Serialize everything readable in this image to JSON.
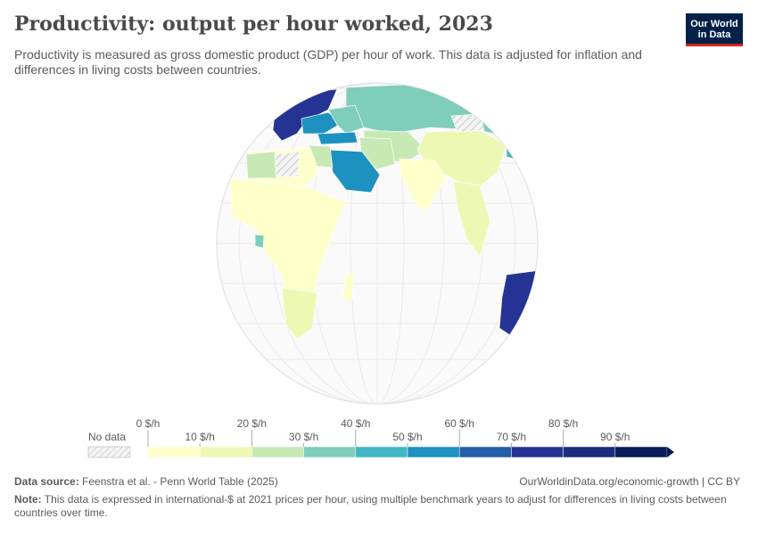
{
  "header": {
    "title": "Productivity: output per hour worked, 2023",
    "subtitle": "Productivity is measured as gross domestic product (GDP) per hour of work. This data is adjusted for inflation and differences in living costs between countries."
  },
  "logo": {
    "line1": "Our World",
    "line2": "in Data"
  },
  "legend": {
    "no_data_label": "No data",
    "bins": [
      {
        "label": "0 $/h",
        "color": "#ffffcc"
      },
      {
        "label": "10 $/h",
        "color": "#eef8b5"
      },
      {
        "label": "20 $/h",
        "color": "#c7e9b4"
      },
      {
        "label": "30 $/h",
        "color": "#7fcdbb"
      },
      {
        "label": "40 $/h",
        "color": "#41b6c4"
      },
      {
        "label": "50 $/h",
        "color": "#1d91c0"
      },
      {
        "label": "60 $/h",
        "color": "#225ea8"
      },
      {
        "label": "70 $/h",
        "color": "#253494"
      },
      {
        "label": "80 $/h",
        "color": "#1c2c7e"
      },
      {
        "label": "90 $/h",
        "color": "#081d58"
      }
    ],
    "top_labels": [
      "0 $/h",
      "20 $/h",
      "40 $/h",
      "60 $/h",
      "80 $/h"
    ],
    "bottom_labels": [
      "10 $/h",
      "30 $/h",
      "50 $/h",
      "70 $/h",
      "90 $/h"
    ]
  },
  "map": {
    "projection": "orthographic globe",
    "regions": [
      {
        "name": "Western Europe",
        "value_bin": "70-90 $/h"
      },
      {
        "name": "Eastern Europe",
        "value_bin": "30-50 $/h"
      },
      {
        "name": "Russia",
        "value_bin": "30-40 $/h"
      },
      {
        "name": "Saudi Arabia",
        "value_bin": "50-60 $/h"
      },
      {
        "name": "Turkey",
        "value_bin": "50-60 $/h"
      },
      {
        "name": "China",
        "value_bin": "10-20 $/h"
      },
      {
        "name": "India",
        "value_bin": "0-10 $/h"
      },
      {
        "name": "Sub-Saharan Africa",
        "value_bin": "0-10 $/h"
      },
      {
        "name": "Australia",
        "value_bin": "70-80 $/h"
      },
      {
        "name": "Southern Africa",
        "value_bin": "10-20 $/h"
      }
    ]
  },
  "footer": {
    "source_label": "Data source:",
    "source_text": "Feenstra et al. - Penn World Table (2025)",
    "url_text": "OurWorldinData.org/economic-growth | CC BY",
    "note_label": "Note:",
    "note_text": "This data is expressed in international-$ at 2021 prices per hour, using multiple benchmark years to adjust for differences in living costs between countries over time."
  }
}
